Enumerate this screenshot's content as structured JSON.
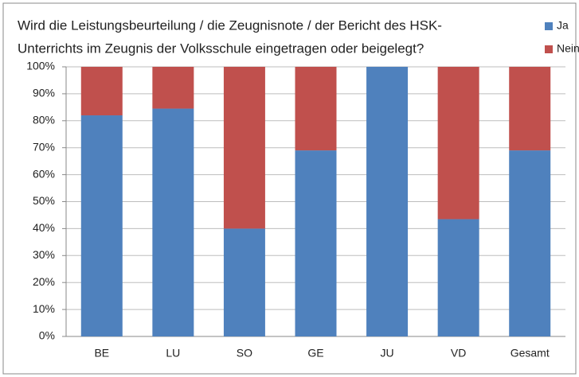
{
  "chart_data": {
    "type": "stacked_bar",
    "title": [
      "Wird die Leistungsbeurteilung / die Zeugnisnote / der Bericht des HSK-",
      "Unterrichts im Zeugnis der Volksschule eingetragen oder beigelegt?"
    ],
    "categories": [
      "BE",
      "LU",
      "SO",
      "GE",
      "JU",
      "VD",
      "Gesamt"
    ],
    "series": [
      {
        "name": "Ja",
        "color": "#4f81bd",
        "values": [
          82,
          84.5,
          40,
          69,
          100,
          43.5,
          69
        ]
      },
      {
        "name": "Nein",
        "color": "#c0504d",
        "values": [
          18,
          15.5,
          60,
          31,
          0,
          56.5,
          31
        ]
      }
    ],
    "ylim": [
      0,
      100
    ],
    "yticks": [
      {
        "value": 0,
        "label": "0%"
      },
      {
        "value": 10,
        "label": "10%"
      },
      {
        "value": 20,
        "label": "20%"
      },
      {
        "value": 30,
        "label": "30%"
      },
      {
        "value": 40,
        "label": "40%"
      },
      {
        "value": 50,
        "label": "50%"
      },
      {
        "value": 60,
        "label": "60%"
      },
      {
        "value": 70,
        "label": "70%"
      },
      {
        "value": 80,
        "label": "80%"
      },
      {
        "value": 90,
        "label": "90%"
      },
      {
        "value": 100,
        "label": "100%"
      }
    ],
    "grid": true
  }
}
